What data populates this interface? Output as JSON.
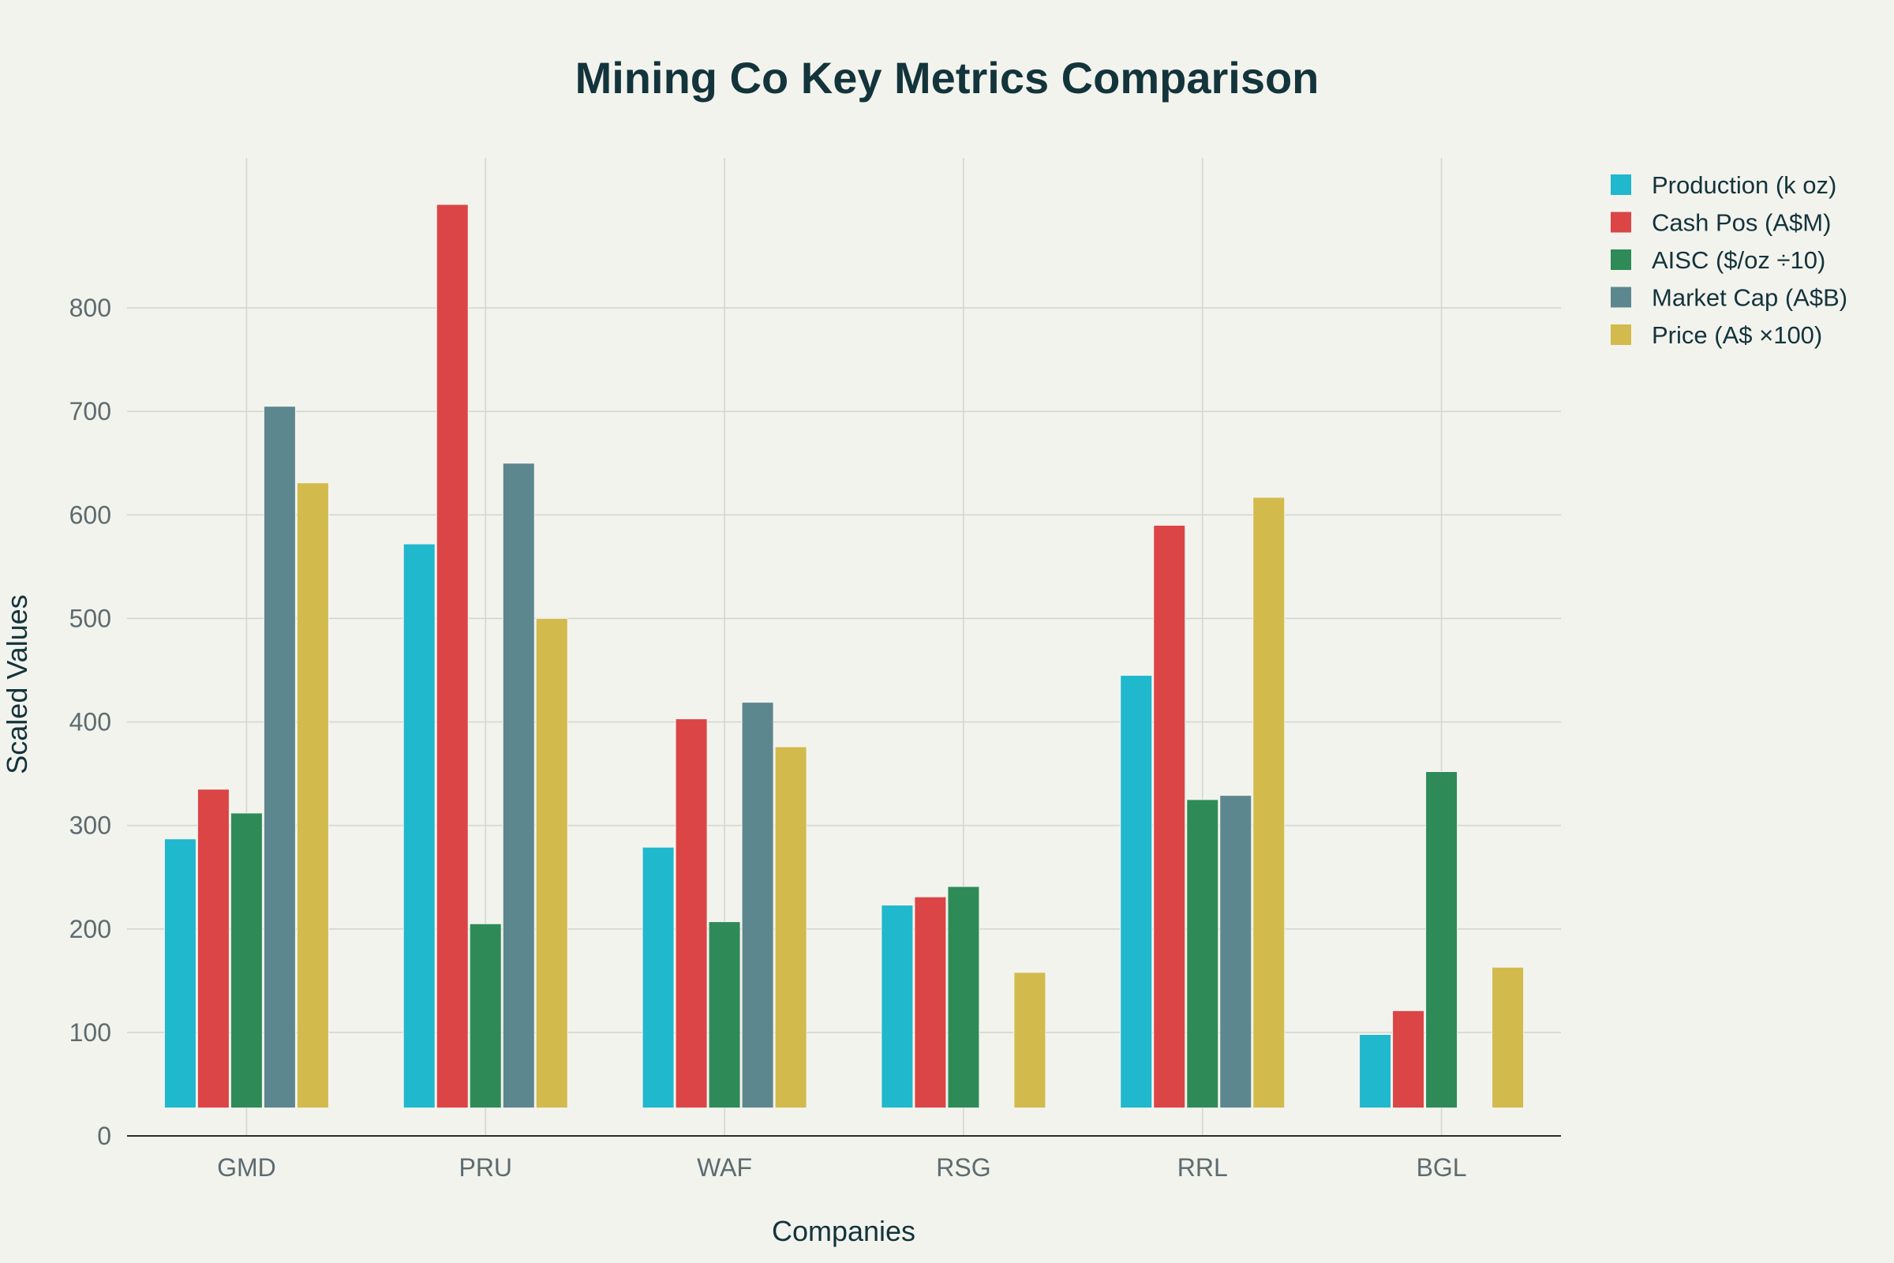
{
  "chart_data": {
    "type": "bar",
    "title": "Mining Co Key Metrics Comparison",
    "xlabel": "Companies",
    "ylabel": "Scaled Values",
    "ylim": [
      0,
      945
    ],
    "yticks": [
      0,
      100,
      200,
      300,
      400,
      500,
      600,
      700,
      800
    ],
    "categories": [
      "GMD",
      "PRU",
      "WAF",
      "RSG",
      "RRL",
      "BGL"
    ],
    "grid": true,
    "legend_position": "top-right",
    "series": [
      {
        "name": "Production (k oz)",
        "color": "#1fb8cd",
        "values": [
          287,
          572,
          279,
          223,
          445,
          98
        ]
      },
      {
        "name": "Cash Pos (A$M)",
        "color": "#db4545",
        "values": [
          335,
          900,
          403,
          231,
          590,
          121
        ]
      },
      {
        "name": "AISC ($/oz ÷10)",
        "color": "#2e8b57",
        "values": [
          312,
          205,
          207,
          241,
          325,
          352
        ]
      },
      {
        "name": "Market Cap (A$B)",
        "color": "#5d878f",
        "values": [
          705,
          650,
          419,
          0,
          329,
          0
        ]
      },
      {
        "name": "Price (A$ ×100)",
        "color": "#d2ba4c",
        "values": [
          631,
          500,
          376,
          158,
          617,
          163
        ]
      }
    ]
  }
}
